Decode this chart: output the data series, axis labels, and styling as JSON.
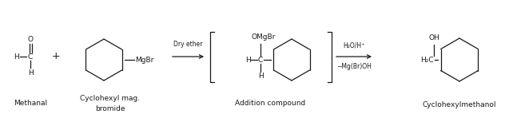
{
  "bg_color": "#ffffff",
  "text_color": "#1a1a1a",
  "label_methanal": "Methanal",
  "label_cyclohexyl": "Cyclohexyl mag.\nbromide",
  "label_addition": "Addition compound",
  "label_product": "Cyclohexylmethanol",
  "arrow1_label_top": "Dry ether",
  "arrow2_label_top": "H₂O/H⁺",
  "arrow2_label_bot": "−Mg(Br)OH",
  "figsize": [
    6.32,
    1.43
  ],
  "dpi": 100
}
